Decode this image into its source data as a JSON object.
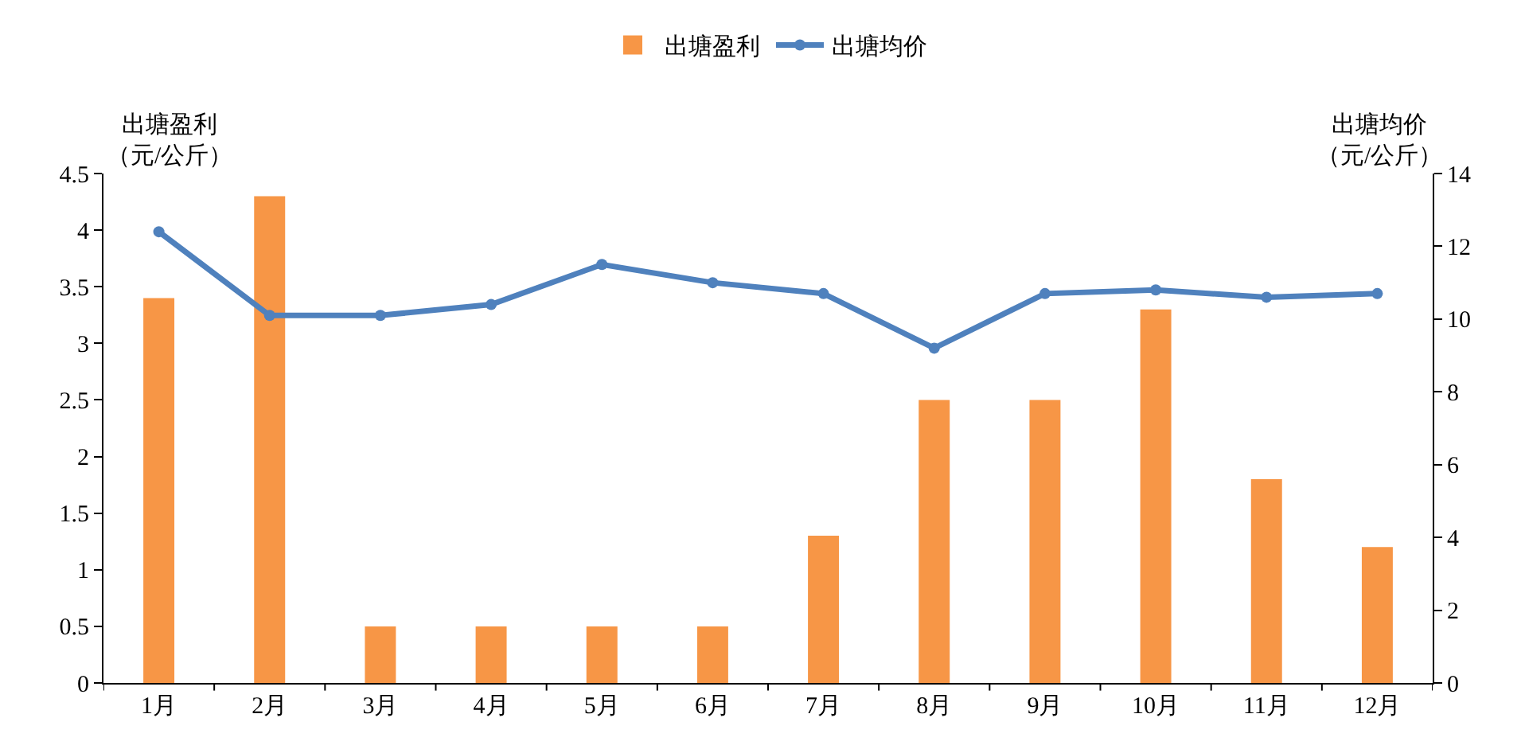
{
  "chart_data": {
    "type": "bar",
    "categories": [
      "1月",
      "2月",
      "3月",
      "4月",
      "5月",
      "6月",
      "7月",
      "8月",
      "9月",
      "10月",
      "11月",
      "12月"
    ],
    "series": [
      {
        "name": "出塘盈利",
        "color": "#f79646",
        "values": [
          3.4,
          4.3,
          0.5,
          0.5,
          0.5,
          0.5,
          1.3,
          2.5,
          2.5,
          3.3,
          1.8,
          1.2
        ]
      },
      {
        "name": "出塘均价",
        "type": "line",
        "axis": "y2",
        "color": "#4f81bd",
        "values": [
          12.4,
          10.1,
          10.1,
          10.4,
          11.5,
          11.0,
          10.7,
          9.2,
          10.7,
          10.8,
          10.6,
          10.7
        ]
      }
    ],
    "ylabel": "出塘盈利（元/公斤）",
    "y2label": "出塘均价（元/公斤）",
    "ylim": [
      0,
      4.5
    ],
    "yticks": [
      0,
      0.5,
      1,
      1.5,
      2,
      2.5,
      3,
      3.5,
      4,
      4.5
    ],
    "y2lim": [
      0,
      14
    ],
    "y2ticks": [
      0,
      2,
      4,
      6,
      8,
      10,
      12,
      14
    ],
    "grid": false,
    "legend": "top",
    "marker": "circle",
    "line_style": "solid"
  }
}
